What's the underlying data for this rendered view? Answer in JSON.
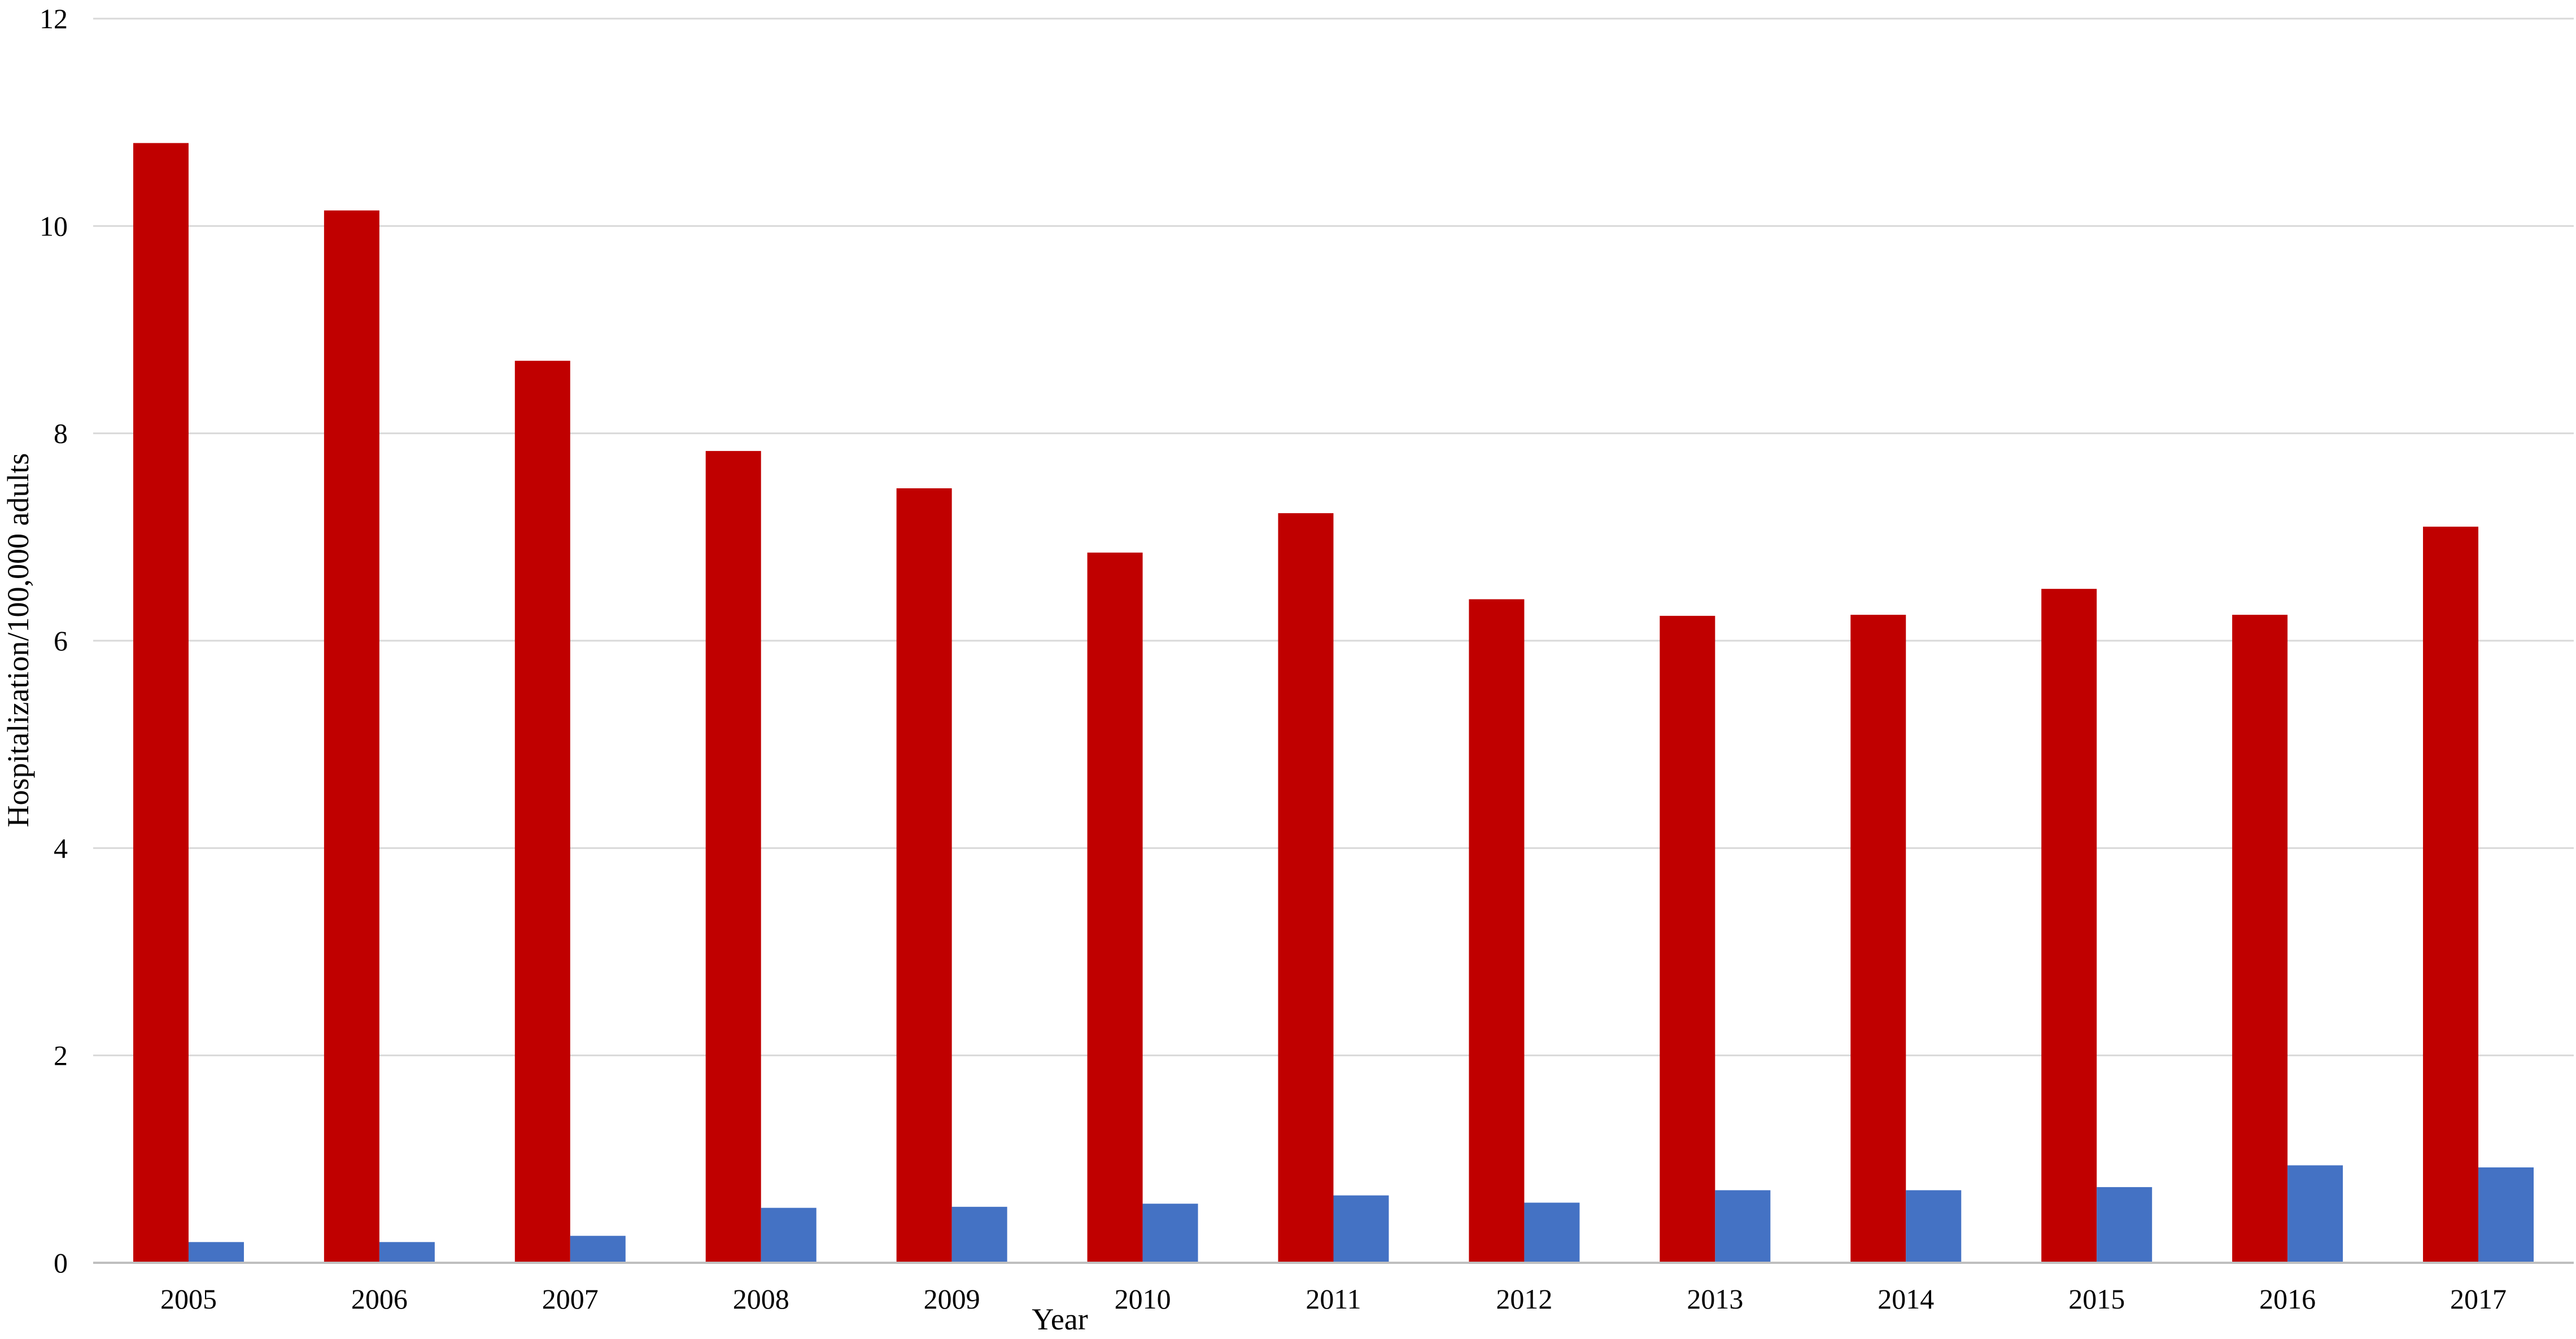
{
  "chart_data": {
    "type": "bar",
    "title": "",
    "xlabel": "Year",
    "ylabel": "Hospitalization/100,000 adults",
    "categories": [
      "2005",
      "2006",
      "2007",
      "2008",
      "2009",
      "2010",
      "2011",
      "2012",
      "2013",
      "2014",
      "2015",
      "2016",
      "2017"
    ],
    "series": [
      {
        "color": "#C00000",
        "values": [
          10.8,
          10.15,
          8.7,
          7.83,
          7.47,
          6.85,
          7.23,
          6.4,
          6.24,
          6.25,
          6.5,
          6.25,
          7.1
        ]
      },
      {
        "color": "#4472C4",
        "values": [
          0.2,
          0.2,
          0.26,
          0.53,
          0.54,
          0.57,
          0.65,
          0.58,
          0.7,
          0.7,
          0.73,
          0.94,
          0.92
        ]
      }
    ],
    "ylim": [
      0,
      12
    ],
    "yticks": [
      "0",
      "2",
      "4",
      "6",
      "8",
      "10",
      "12"
    ],
    "grid": true,
    "legend": "none",
    "colors": {
      "gridline": "#D9D9D9",
      "axis": "#BFBFBF"
    }
  }
}
